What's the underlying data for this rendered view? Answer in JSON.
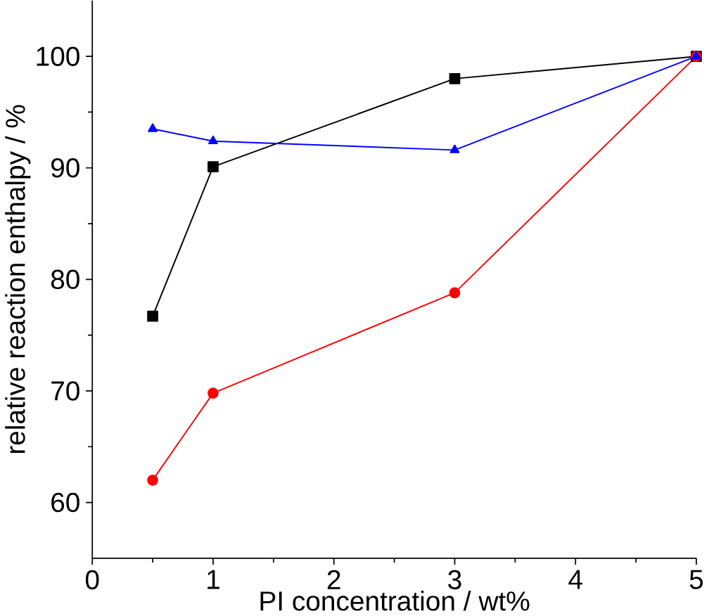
{
  "chart_data": {
    "type": "line",
    "xlabel": "PI concentration / wt%",
    "ylabel": "relative reaction enthalpy / %",
    "x": [
      0.5,
      1,
      3,
      5
    ],
    "series": [
      {
        "color": "#000000",
        "marker": "square",
        "values": [
          76.7,
          90.1,
          98.0,
          100
        ]
      },
      {
        "color": "#ff0000",
        "marker": "circle",
        "values": [
          62.0,
          69.8,
          78.8,
          100
        ]
      },
      {
        "color": "#0000ff",
        "marker": "triangle",
        "values": [
          93.5,
          92.4,
          91.6,
          100
        ]
      }
    ],
    "xlim": [
      0,
      5
    ],
    "ylim": [
      55,
      105
    ],
    "xticks": [
      0,
      1,
      2,
      3,
      4,
      5
    ],
    "yticks": [
      60,
      70,
      80,
      90,
      100
    ],
    "line_style": "solid"
  }
}
